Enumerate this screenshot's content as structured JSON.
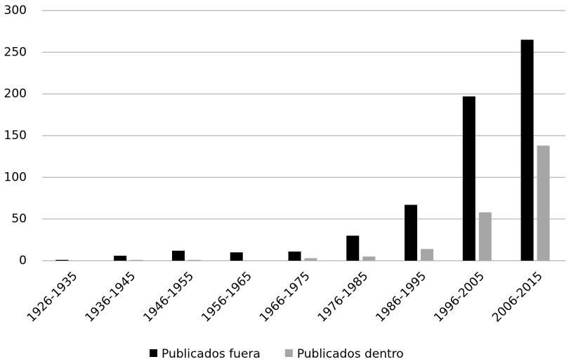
{
  "chart_data": {
    "type": "bar",
    "categories": [
      "1926-1935",
      "1936-1945",
      "1946-1955",
      "1956-1965",
      "1966-1975",
      "1976-1985",
      "1986-1995",
      "1996-2005",
      "2006-2015"
    ],
    "series": [
      {
        "name": "Publicados fuera",
        "color": "#000000",
        "values": [
          1,
          6,
          12,
          10,
          11,
          30,
          67,
          197,
          265
        ]
      },
      {
        "name": "Publicados dentro",
        "color": "#a6a6a6",
        "values": [
          0,
          1,
          1,
          0,
          3,
          5,
          14,
          58,
          138
        ]
      }
    ],
    "ylim": [
      0,
      300
    ],
    "yticks": [
      0,
      50,
      100,
      150,
      200,
      250,
      300
    ],
    "grid": true,
    "legend": "bottom"
  }
}
